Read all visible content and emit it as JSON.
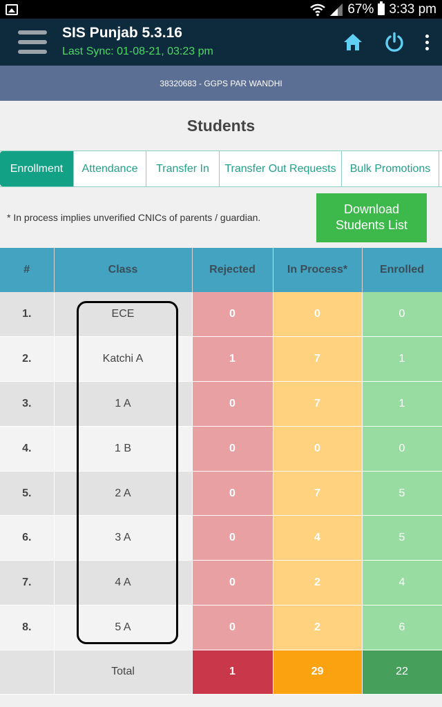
{
  "status_bar": {
    "battery": "67%",
    "time": "3:33 pm",
    "icons": [
      "gallery-icon",
      "wifi-icon",
      "signal-icon",
      "battery-icon"
    ]
  },
  "app_bar": {
    "title": "SIS Punjab 5.3.16",
    "last_sync": "Last Sync: 01-08-21, 03:23 pm",
    "icons": [
      "menu-icon",
      "home-icon",
      "power-icon",
      "more-vert-icon"
    ]
  },
  "school": "38320683 - GGPS PAR WANDHI",
  "page_title": "Students",
  "tabs": [
    {
      "label": "Enrollment",
      "active": true
    },
    {
      "label": "Attendance",
      "active": false
    },
    {
      "label": "Transfer In",
      "active": false
    },
    {
      "label": "Transfer Out Requests",
      "active": false
    },
    {
      "label": "Bulk Promotions",
      "active": false
    }
  ],
  "note": "* In process implies unverified CNICs of parents / guardian.",
  "download_button": {
    "line1": "Download",
    "line2": "Students List"
  },
  "table": {
    "headers": [
      "#",
      "Class",
      "Rejected",
      "In Process*",
      "Enrolled"
    ],
    "rows": [
      {
        "num": "1.",
        "cls": "ECE",
        "rejected": "0",
        "in_process": "0",
        "enrolled": "0"
      },
      {
        "num": "2.",
        "cls": "Katchi A",
        "rejected": "1",
        "in_process": "7",
        "enrolled": "1"
      },
      {
        "num": "3.",
        "cls": "1 A",
        "rejected": "0",
        "in_process": "7",
        "enrolled": "1"
      },
      {
        "num": "4.",
        "cls": "1 B",
        "rejected": "0",
        "in_process": "0",
        "enrolled": "0"
      },
      {
        "num": "5.",
        "cls": "2 A",
        "rejected": "0",
        "in_process": "7",
        "enrolled": "5"
      },
      {
        "num": "6.",
        "cls": "3 A",
        "rejected": "0",
        "in_process": "4",
        "enrolled": "5"
      },
      {
        "num": "7.",
        "cls": "4 A",
        "rejected": "0",
        "in_process": "2",
        "enrolled": "4"
      },
      {
        "num": "8.",
        "cls": "5 A",
        "rejected": "0",
        "in_process": "2",
        "enrolled": "6"
      }
    ],
    "total": {
      "label": "Total",
      "rejected": "1",
      "in_process": "29",
      "enrolled": "22"
    }
  },
  "colors": {
    "app_bar": "#0e2a3d",
    "sync_text": "#4cd964",
    "school_band": "#5b6e93",
    "tab_active": "#12a185",
    "download": "#3db84b",
    "header": "#44a3c0",
    "rejected": "#e8a0a2",
    "in_process": "#fed27e",
    "enrolled": "#99dca1"
  }
}
